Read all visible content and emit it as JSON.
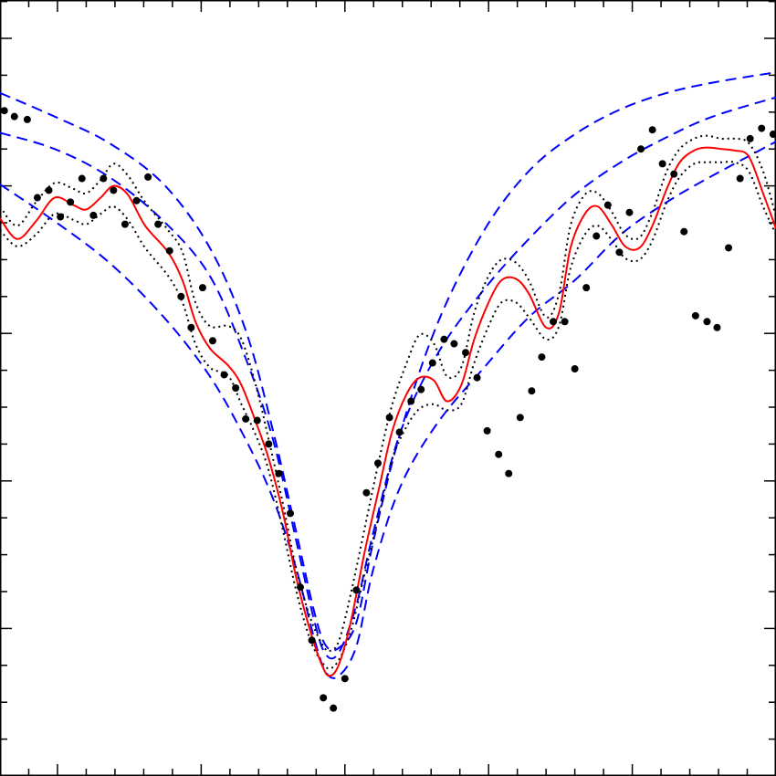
{
  "chart_data": {
    "type": "scatter",
    "title": "",
    "xlabel": "",
    "ylabel": "",
    "xlim": [
      -2.4,
      3.0
    ],
    "ylim": [
      0,
      5.26
    ],
    "x_major_ticks": [
      -2,
      -1,
      0,
      1,
      2
    ],
    "x_minor_step": 0.2,
    "y_major_ticks": [
      0,
      1,
      2,
      3,
      4,
      5
    ],
    "y_minor_step": 0.25,
    "tick_labels_shown": false,
    "grid": false,
    "legend": "none",
    "colors": {
      "points": "#000000",
      "fit": "#ff0000",
      "band": "#000000",
      "reference": "#0000ff"
    },
    "points": {
      "x": [
        -2.37,
        -2.3,
        -2.21,
        -2.14,
        -2.06,
        -1.98,
        -1.91,
        -1.83,
        -1.75,
        -1.68,
        -1.61,
        -1.53,
        -1.45,
        -1.37,
        -1.3,
        -1.22,
        -1.14,
        -1.07,
        -0.99,
        -0.92,
        -0.84,
        -0.76,
        -0.69,
        -0.61,
        -0.53,
        -0.46,
        -0.38,
        -0.31,
        -0.23,
        -0.15,
        -0.08,
        0.0,
        0.08,
        0.15,
        0.23,
        0.31,
        0.38,
        0.46,
        0.53,
        0.61,
        0.69,
        0.76,
        0.84,
        0.92,
        0.99,
        1.07,
        1.14,
        1.22,
        1.3,
        1.37,
        1.45,
        1.53,
        1.6,
        1.68,
        1.75,
        1.83,
        1.91,
        1.98,
        2.06,
        2.14,
        2.21,
        2.29,
        2.36,
        2.44,
        2.52,
        2.59,
        2.67,
        2.75,
        2.82,
        2.9,
        2.98
      ],
      "y": [
        4.51,
        4.47,
        4.45,
        3.92,
        3.97,
        3.79,
        3.89,
        4.05,
        3.8,
        4.05,
        3.97,
        3.74,
        3.9,
        4.06,
        3.74,
        3.56,
        3.25,
        3.04,
        3.31,
        2.95,
        2.72,
        2.63,
        2.42,
        2.41,
        2.25,
        2.05,
        1.78,
        1.28,
        0.92,
        0.53,
        0.46,
        0.66,
        1.26,
        1.92,
        2.12,
        2.43,
        2.33,
        2.54,
        2.62,
        2.8,
        2.96,
        2.93,
        2.87,
        2.7,
        2.34,
        2.18,
        2.05,
        2.43,
        2.61,
        2.84,
        3.08,
        3.08,
        2.76,
        3.31,
        3.66,
        3.87,
        3.55,
        3.82,
        4.25,
        4.38,
        4.15,
        4.08,
        3.69,
        3.12,
        3.08,
        3.04,
        3.58,
        4.05,
        4.32,
        4.39,
        4.35
      ]
    },
    "fit": {
      "x": [
        -2.4,
        -2.28,
        -2.15,
        -2.02,
        -1.89,
        -1.8,
        -1.7,
        -1.61,
        -1.51,
        -1.39,
        -1.23,
        -1.13,
        -1.04,
        -0.94,
        -0.81,
        -0.72,
        -0.62,
        -0.53,
        -0.43,
        -0.34,
        -0.24,
        -0.15,
        -0.1,
        -0.04,
        0.04,
        0.14,
        0.24,
        0.33,
        0.43,
        0.52,
        0.62,
        0.71,
        0.81,
        0.9,
        1.0,
        1.09,
        1.19,
        1.28,
        1.4,
        1.49,
        1.57,
        1.67,
        1.76,
        1.86,
        1.95,
        2.05,
        2.14,
        2.24,
        2.33,
        2.43,
        2.52,
        2.62,
        2.71,
        2.81,
        2.91,
        3.0
      ],
      "y": [
        3.78,
        3.64,
        3.76,
        3.92,
        3.87,
        3.84,
        3.92,
        4.0,
        3.94,
        3.73,
        3.55,
        3.36,
        3.08,
        2.9,
        2.78,
        2.65,
        2.4,
        2.15,
        1.78,
        1.35,
        0.98,
        0.73,
        0.68,
        0.76,
        1.04,
        1.53,
        1.96,
        2.34,
        2.59,
        2.7,
        2.68,
        2.54,
        2.65,
        2.96,
        3.21,
        3.36,
        3.37,
        3.27,
        3.04,
        3.14,
        3.58,
        3.81,
        3.86,
        3.73,
        3.59,
        3.58,
        3.73,
        3.98,
        4.16,
        4.24,
        4.26,
        4.25,
        4.24,
        4.2,
        3.95,
        3.71
      ],
      "band_upper": [
        3.86,
        3.73,
        3.89,
        4.02,
        3.98,
        3.95,
        4.04,
        4.15,
        4.07,
        3.89,
        3.7,
        3.55,
        3.21,
        3.05,
        3.05,
        2.96,
        2.65,
        2.28,
        1.84,
        1.41,
        1.07,
        0.88,
        0.85,
        0.92,
        1.23,
        1.69,
        2.15,
        2.52,
        2.8,
        2.99,
        2.93,
        2.71,
        2.77,
        3.14,
        3.39,
        3.5,
        3.48,
        3.36,
        3.11,
        3.27,
        3.73,
        3.94,
        3.95,
        3.82,
        3.67,
        3.65,
        3.82,
        4.1,
        4.25,
        4.32,
        4.34,
        4.32,
        4.32,
        4.29,
        4.1,
        3.79
      ],
      "band_lower": [
        3.7,
        3.59,
        3.67,
        3.81,
        3.77,
        3.74,
        3.81,
        3.86,
        3.77,
        3.58,
        3.39,
        3.21,
        2.93,
        2.77,
        2.71,
        2.52,
        2.31,
        2.07,
        1.66,
        1.26,
        0.92,
        0.76,
        0.73,
        0.79,
        0.98,
        1.38,
        1.78,
        2.15,
        2.37,
        2.49,
        2.52,
        2.48,
        2.52,
        2.8,
        3.05,
        3.21,
        3.21,
        3.11,
        2.96,
        3.05,
        3.44,
        3.67,
        3.73,
        3.63,
        3.51,
        3.5,
        3.63,
        3.89,
        4.06,
        4.15,
        4.16,
        4.16,
        4.16,
        4.1,
        3.86,
        3.67
      ]
    },
    "reference_curves": {
      "x": [
        -2.4,
        -2.02,
        -1.64,
        -1.26,
        -0.94,
        -0.69,
        -0.5,
        -0.34,
        -0.21,
        -0.13,
        -0.04,
        0.08,
        0.2,
        0.39,
        0.65,
        0.97,
        1.28,
        1.6,
        1.92,
        2.24,
        2.56,
        3.0
      ],
      "series": [
        {
          "y": [
            4.63,
            4.47,
            4.29,
            4.01,
            3.58,
            3.02,
            2.34,
            1.66,
            1.1,
            0.88,
            0.87,
            1.04,
            1.6,
            2.34,
            3.08,
            3.7,
            4.1,
            4.35,
            4.52,
            4.63,
            4.7,
            4.77
          ]
        },
        {
          "y": [
            4.36,
            4.25,
            4.06,
            3.76,
            3.39,
            2.83,
            2.28,
            1.6,
            1.04,
            0.82,
            0.84,
            1.16,
            1.66,
            2.34,
            2.87,
            3.3,
            3.64,
            3.94,
            4.16,
            4.33,
            4.47,
            4.6
          ]
        },
        {
          "y": [
            4.01,
            3.76,
            3.48,
            3.11,
            2.71,
            2.28,
            1.88,
            1.41,
            0.92,
            0.7,
            0.68,
            0.88,
            1.41,
            1.97,
            2.4,
            2.77,
            3.11,
            3.36,
            3.67,
            3.89,
            4.07,
            4.3
          ]
        }
      ]
    }
  }
}
